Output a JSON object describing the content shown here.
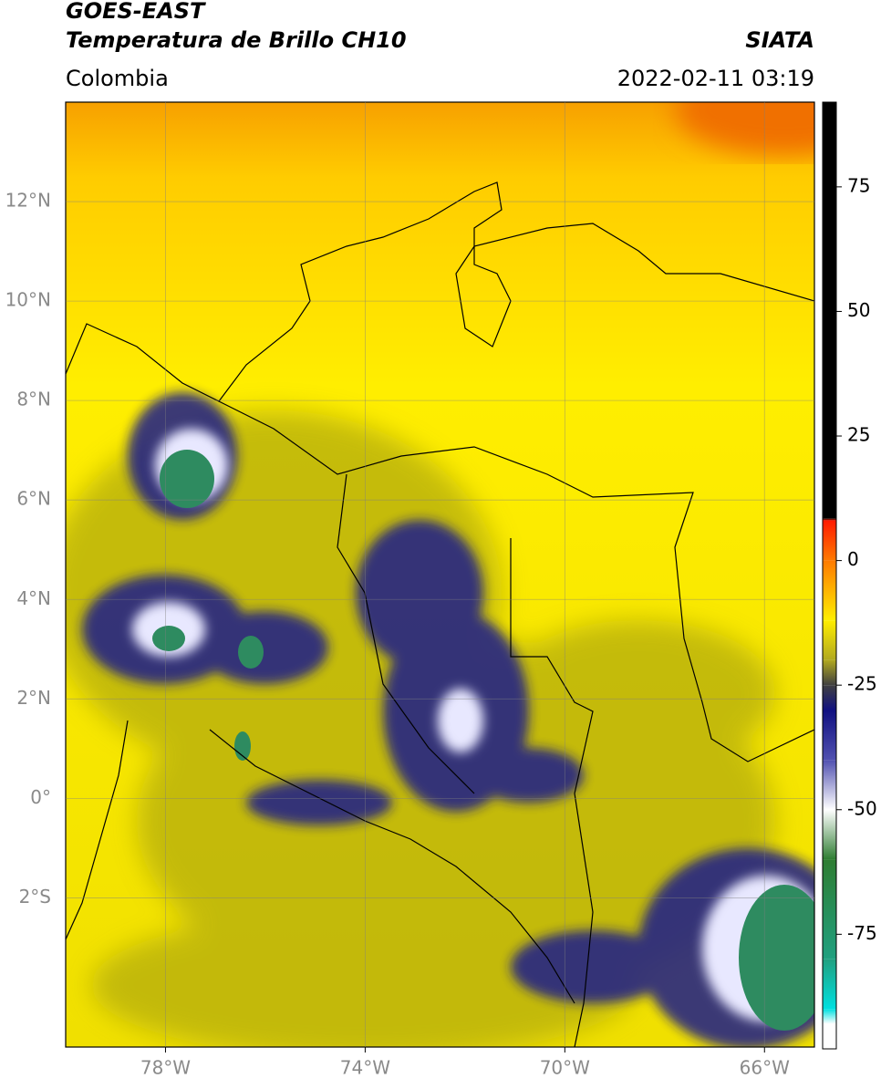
{
  "header": {
    "title": "GOES-EAST",
    "subtitle": "Temperatura de Brillo CH10",
    "source": "SIATA",
    "region": "Colombia",
    "timestamp": "2022-02-11 03:19"
  },
  "map": {
    "lonlim": [
      -80,
      -65
    ],
    "latlim": [
      -5,
      14
    ],
    "lonticks": [
      {
        "value": -78,
        "label": "78°W"
      },
      {
        "value": -74,
        "label": "74°W"
      },
      {
        "value": -70,
        "label": "70°W"
      },
      {
        "value": -66,
        "label": "66°W"
      }
    ],
    "latticks": [
      {
        "value": 12,
        "label": "12°N"
      },
      {
        "value": 10,
        "label": "10°N"
      },
      {
        "value": 8,
        "label": "8°N"
      },
      {
        "value": 6,
        "label": "6°N"
      },
      {
        "value": 4,
        "label": "4°N"
      },
      {
        "value": 2,
        "label": "2°N"
      },
      {
        "value": 0,
        "label": "0°"
      },
      {
        "value": -2,
        "label": "2°S"
      }
    ],
    "grid": true
  },
  "colorbar": {
    "lim": [
      -98,
      92
    ],
    "ticks": [
      75,
      50,
      25,
      0,
      -25,
      -50,
      -75
    ],
    "stops": [
      {
        "value": 92,
        "color": "#000000"
      },
      {
        "value": 8.5,
        "color": "#000000"
      },
      {
        "value": 8,
        "color": "#ff1a00"
      },
      {
        "value": 0,
        "color": "#ff7a00"
      },
      {
        "value": -12,
        "color": "#ffee00"
      },
      {
        "value": -20,
        "color": "#b0a820"
      },
      {
        "value": -25,
        "color": "#404040"
      },
      {
        "value": -30,
        "color": "#101080"
      },
      {
        "value": -40,
        "color": "#5050b0"
      },
      {
        "value": -50,
        "color": "#ffffff"
      },
      {
        "value": -60,
        "color": "#2e7d32"
      },
      {
        "value": -80,
        "color": "#20a080"
      },
      {
        "value": -90,
        "color": "#00e0e0"
      },
      {
        "value": -93,
        "color": "#ffffff"
      },
      {
        "value": -98,
        "color": "#ffffff"
      }
    ]
  }
}
